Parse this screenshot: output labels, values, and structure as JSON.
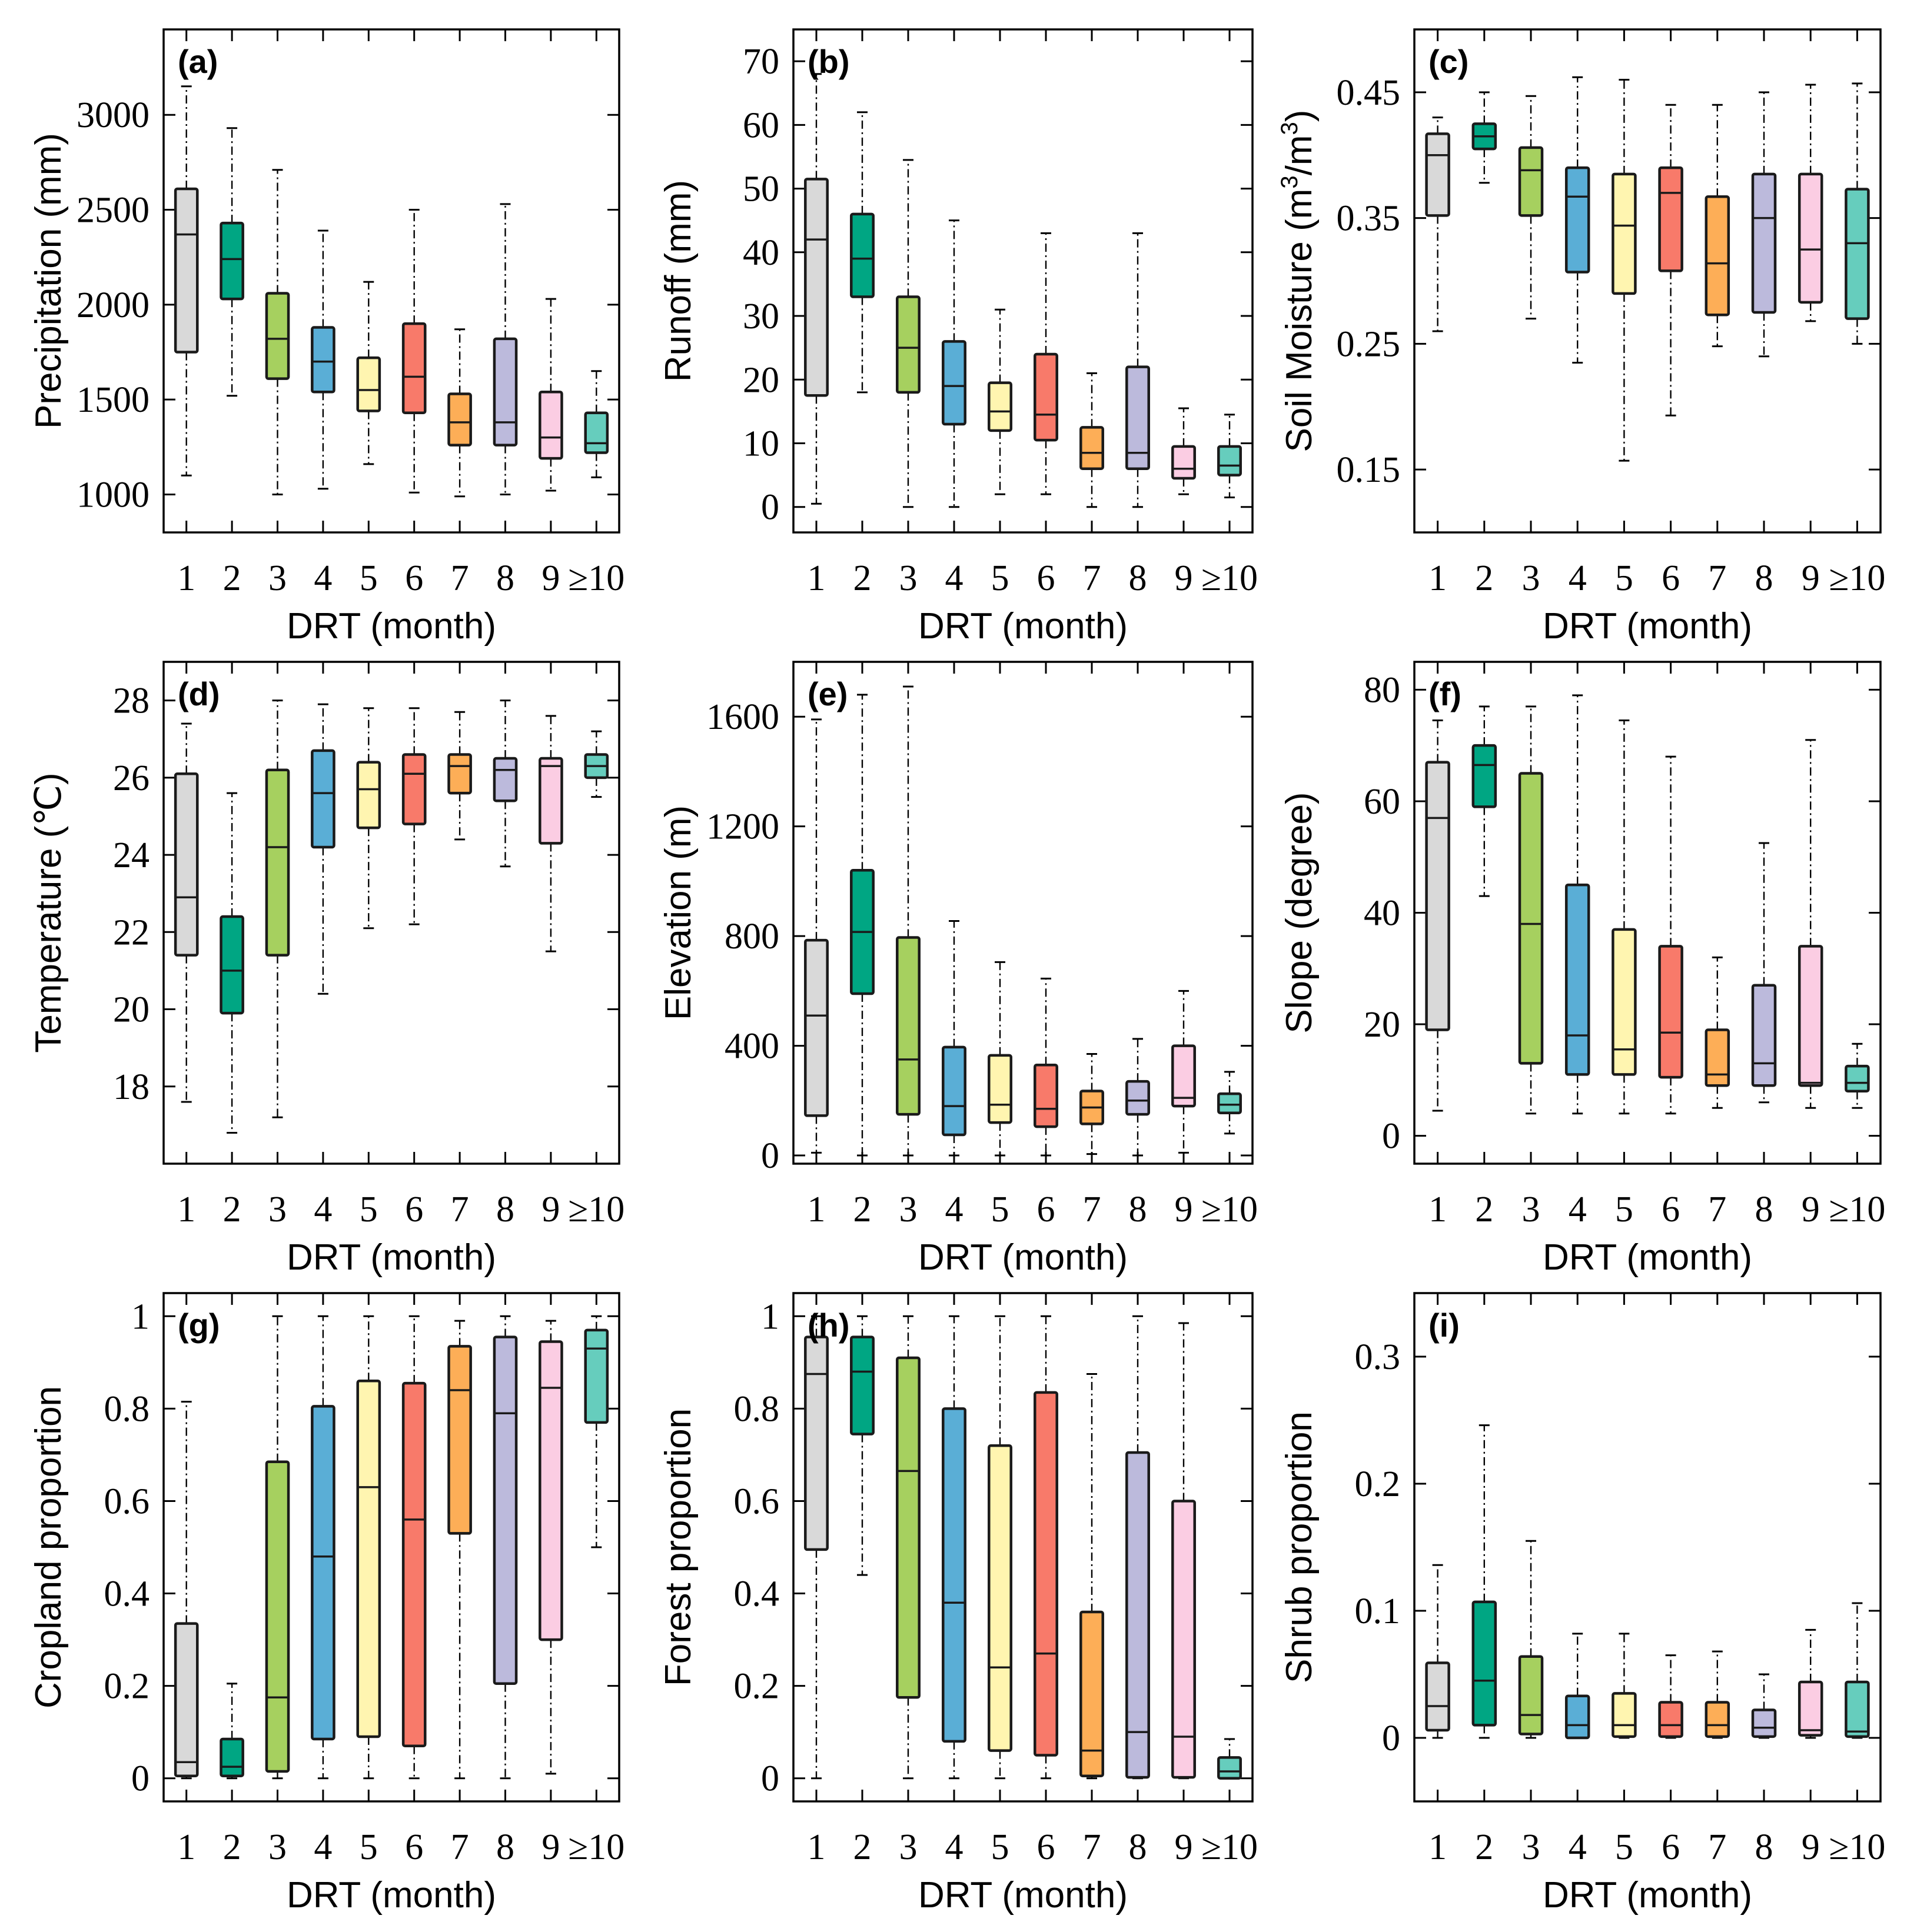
{
  "figure": {
    "colors": [
      "#d9d9d9",
      "#00a683",
      "#a6d05f",
      "#5aaed6",
      "#fff5b0",
      "#f87a6a",
      "#fdae57",
      "#bcbadc",
      "#fbcde3",
      "#66cdbd"
    ]
  },
  "chart_data": [
    {
      "type": "box",
      "panel_label": "(a)",
      "ylabel": "Precipitation (mm)",
      "xlabel": "DRT (month)",
      "categories": [
        "1",
        "2",
        "3",
        "4",
        "5",
        "6",
        "7",
        "8",
        "9",
        "≥10"
      ],
      "ylim": [
        800,
        3450
      ],
      "yticks": [
        1000,
        1500,
        2000,
        2500,
        3000
      ],
      "ytick_labels": [
        "1000",
        "1500",
        "2000",
        "2500",
        "3000"
      ],
      "whisker_low": [
        1100,
        1520,
        1000,
        1030,
        1160,
        1010,
        990,
        1000,
        1020,
        1090
      ],
      "q1": [
        1750,
        2030,
        1610,
        1540,
        1440,
        1430,
        1260,
        1260,
        1190,
        1220
      ],
      "median": [
        2370,
        2240,
        1820,
        1700,
        1550,
        1620,
        1380,
        1380,
        1300,
        1270
      ],
      "q3": [
        2610,
        2430,
        2060,
        1880,
        1720,
        1900,
        1530,
        1820,
        1540,
        1430
      ],
      "whisker_high": [
        3150,
        2930,
        2710,
        2390,
        2120,
        2500,
        1870,
        2530,
        2030,
        1650
      ]
    },
    {
      "type": "box",
      "panel_label": "(b)",
      "ylabel": "Runoff (mm)",
      "xlabel": "DRT (month)",
      "categories": [
        "1",
        "2",
        "3",
        "4",
        "5",
        "6",
        "7",
        "8",
        "9",
        "≥10"
      ],
      "ylim": [
        -4,
        75
      ],
      "yticks": [
        0,
        10,
        20,
        30,
        40,
        50,
        60,
        70
      ],
      "ytick_labels": [
        "0",
        "10",
        "20",
        "30",
        "40",
        "50",
        "60",
        "70"
      ],
      "whisker_low": [
        0.5,
        18,
        0,
        0,
        2,
        2,
        0,
        0,
        2,
        1.5
      ],
      "q1": [
        17.5,
        33,
        18,
        13,
        12,
        10.5,
        6,
        6,
        4.5,
        5
      ],
      "median": [
        42,
        39,
        25,
        19,
        15,
        14.5,
        8.5,
        8.5,
        6,
        6.5
      ],
      "q3": [
        51.5,
        46,
        33,
        26,
        19.5,
        24,
        12.5,
        22,
        9.5,
        9.5
      ],
      "whisker_high": [
        68,
        62,
        54.5,
        45,
        31,
        43,
        21,
        43,
        15.5,
        14.5
      ]
    },
    {
      "type": "box",
      "panel_label": "(c)",
      "ylabel": "Soil Moisture (m3/m3)",
      "ylabel_parts": [
        "Soil Moisture (m",
        "3",
        "/m",
        "3",
        ")"
      ],
      "xlabel": "DRT (month)",
      "categories": [
        "1",
        "2",
        "3",
        "4",
        "5",
        "6",
        "7",
        "8",
        "9",
        "≥10"
      ],
      "ylim": [
        0.1,
        0.5
      ],
      "yticks": [
        0.15,
        0.25,
        0.35,
        0.45
      ],
      "ytick_labels": [
        "0.15",
        "0.25",
        "0.35",
        "0.45"
      ],
      "whisker_low": [
        0.26,
        0.378,
        0.27,
        0.235,
        0.157,
        0.193,
        0.248,
        0.24,
        0.268,
        0.25
      ],
      "q1": [
        0.352,
        0.405,
        0.352,
        0.307,
        0.29,
        0.308,
        0.273,
        0.275,
        0.283,
        0.27
      ],
      "median": [
        0.4,
        0.415,
        0.388,
        0.367,
        0.344,
        0.37,
        0.314,
        0.35,
        0.325,
        0.33
      ],
      "q3": [
        0.417,
        0.425,
        0.406,
        0.39,
        0.385,
        0.39,
        0.367,
        0.385,
        0.385,
        0.373
      ],
      "whisker_high": [
        0.43,
        0.45,
        0.447,
        0.462,
        0.46,
        0.44,
        0.44,
        0.45,
        0.456,
        0.457
      ]
    },
    {
      "type": "box",
      "panel_label": "(d)",
      "ylabel": "Temperature (℃)",
      "xlabel": "DRT (month)",
      "categories": [
        "1",
        "2",
        "3",
        "4",
        "5",
        "6",
        "7",
        "8",
        "9",
        "≥10"
      ],
      "ylim": [
        16,
        29
      ],
      "yticks": [
        18,
        20,
        22,
        24,
        26,
        28
      ],
      "ytick_labels": [
        "18",
        "20",
        "22",
        "24",
        "26",
        "28"
      ],
      "whisker_low": [
        17.6,
        16.8,
        17.2,
        20.4,
        22.1,
        22.2,
        24.4,
        23.7,
        21.5,
        25.5
      ],
      "q1": [
        21.4,
        19.9,
        21.4,
        24.2,
        24.7,
        24.8,
        25.6,
        25.4,
        24.3,
        26.0
      ],
      "median": [
        22.9,
        21.0,
        24.2,
        25.6,
        25.7,
        26.1,
        26.3,
        26.2,
        26.3,
        26.3
      ],
      "q3": [
        26.1,
        22.4,
        26.2,
        26.7,
        26.4,
        26.6,
        26.6,
        26.5,
        26.5,
        26.6
      ],
      "whisker_high": [
        27.4,
        25.6,
        28.0,
        27.9,
        27.8,
        27.8,
        27.7,
        28.0,
        27.6,
        27.2
      ]
    },
    {
      "type": "box",
      "panel_label": "(e)",
      "ylabel": "Elevation (m)",
      "xlabel": "DRT (month)",
      "categories": [
        "1",
        "2",
        "3",
        "4",
        "5",
        "6",
        "7",
        "8",
        "9",
        "≥10"
      ],
      "ylim": [
        -30,
        1800
      ],
      "yticks": [
        0,
        400,
        800,
        1200,
        1600
      ],
      "ytick_labels": [
        "0",
        "400",
        "800",
        "1200",
        "1600"
      ],
      "whisker_low": [
        10,
        0,
        0,
        0,
        0,
        0,
        5,
        0,
        10,
        80
      ],
      "q1": [
        145,
        590,
        150,
        75,
        120,
        105,
        115,
        150,
        180,
        155
      ],
      "median": [
        510,
        815,
        350,
        180,
        185,
        170,
        175,
        200,
        210,
        185
      ],
      "q3": [
        785,
        1040,
        795,
        395,
        365,
        330,
        235,
        270,
        400,
        225
      ],
      "whisker_high": [
        1590,
        1680,
        1710,
        855,
        705,
        645,
        370,
        425,
        600,
        305
      ]
    },
    {
      "type": "box",
      "panel_label": "(f)",
      "ylabel": "Slope (degree)",
      "xlabel": "DRT (month)",
      "categories": [
        "1",
        "2",
        "3",
        "4",
        "5",
        "6",
        "7",
        "8",
        "9",
        "≥10"
      ],
      "ylim": [
        -5,
        85
      ],
      "yticks": [
        0,
        20,
        40,
        60,
        80
      ],
      "ytick_labels": [
        "0",
        "20",
        "40",
        "60",
        "80"
      ],
      "whisker_low": [
        4.5,
        43,
        4,
        4,
        4,
        4,
        5,
        6,
        5,
        5
      ],
      "q1": [
        19,
        59,
        13,
        11,
        11,
        10.5,
        9,
        9,
        9,
        8
      ],
      "median": [
        57,
        66.5,
        38,
        18,
        15.5,
        18.5,
        11,
        13,
        9.5,
        9.5
      ],
      "q3": [
        67,
        70,
        65,
        45,
        37,
        34,
        19,
        27,
        34,
        12.5
      ],
      "whisker_high": [
        74.5,
        77,
        77,
        79,
        74.5,
        68,
        32,
        52.5,
        71,
        16.5
      ]
    },
    {
      "type": "box",
      "panel_label": "(g)",
      "ylabel": "Cropland proportion",
      "xlabel": "DRT (month)",
      "categories": [
        "1",
        "2",
        "3",
        "4",
        "5",
        "6",
        "7",
        "8",
        "9",
        "≥10"
      ],
      "ylim": [
        -0.05,
        1.05
      ],
      "yticks": [
        0,
        0.2,
        0.4,
        0.6,
        0.8,
        1
      ],
      "ytick_labels": [
        "0",
        "0.2",
        "0.4",
        "0.6",
        "0.8",
        "1"
      ],
      "whisker_low": [
        0,
        0,
        0,
        0,
        0,
        0,
        0,
        0,
        0.01,
        0.5
      ],
      "q1": [
        0.005,
        0.005,
        0.015,
        0.085,
        0.09,
        0.07,
        0.53,
        0.205,
        0.3,
        0.77
      ],
      "median": [
        0.035,
        0.025,
        0.175,
        0.48,
        0.63,
        0.56,
        0.84,
        0.79,
        0.845,
        0.93
      ],
      "q3": [
        0.335,
        0.085,
        0.685,
        0.805,
        0.86,
        0.855,
        0.935,
        0.955,
        0.945,
        0.97
      ],
      "whisker_high": [
        0.815,
        0.205,
        1,
        1,
        1,
        1,
        0.99,
        1,
        0.99,
        1
      ]
    },
    {
      "type": "box",
      "panel_label": "(h)",
      "ylabel": "Forest proportion",
      "xlabel": "DRT (month)",
      "categories": [
        "1",
        "2",
        "3",
        "4",
        "5",
        "6",
        "7",
        "8",
        "9",
        "≥10"
      ],
      "ylim": [
        -0.05,
        1.05
      ],
      "yticks": [
        0,
        0.2,
        0.4,
        0.6,
        0.8,
        1
      ],
      "ytick_labels": [
        "0",
        "0.2",
        "0.4",
        "0.6",
        "0.8",
        "1"
      ],
      "whisker_low": [
        0,
        0.44,
        0,
        0,
        0,
        0,
        0,
        0,
        0,
        0
      ],
      "q1": [
        0.495,
        0.745,
        0.175,
        0.08,
        0.06,
        0.05,
        0.005,
        0.002,
        0.002,
        0
      ],
      "median": [
        0.875,
        0.88,
        0.665,
        0.38,
        0.24,
        0.27,
        0.06,
        0.1,
        0.09,
        0.015
      ],
      "q3": [
        0.955,
        0.955,
        0.91,
        0.8,
        0.72,
        0.835,
        0.36,
        0.705,
        0.6,
        0.045
      ],
      "whisker_high": [
        1,
        1,
        1,
        1,
        1,
        1,
        0.875,
        1,
        0.985,
        0.085
      ]
    },
    {
      "type": "box",
      "panel_label": "(i)",
      "ylabel": "Shrub proportion",
      "xlabel": "DRT (month)",
      "categories": [
        "1",
        "2",
        "3",
        "4",
        "5",
        "6",
        "7",
        "8",
        "9",
        "≥10"
      ],
      "ylim": [
        -0.05,
        0.35
      ],
      "yticks": [
        0,
        0.1,
        0.2,
        0.3
      ],
      "ytick_labels": [
        "0",
        "0.1",
        "0.2",
        "0.3"
      ],
      "whisker_low": [
        0,
        0,
        0,
        0,
        0,
        0,
        0,
        0,
        0,
        0
      ],
      "q1": [
        0.006,
        0.01,
        0.003,
        0,
        0.001,
        0.001,
        0.001,
        0.001,
        0.002,
        0.001
      ],
      "median": [
        0.025,
        0.045,
        0.018,
        0.01,
        0.01,
        0.01,
        0.01,
        0.008,
        0.006,
        0.005
      ],
      "q3": [
        0.059,
        0.107,
        0.064,
        0.033,
        0.035,
        0.028,
        0.028,
        0.022,
        0.044,
        0.044
      ],
      "whisker_high": [
        0.136,
        0.246,
        0.155,
        0.082,
        0.082,
        0.065,
        0.068,
        0.05,
        0.085,
        0.106
      ]
    }
  ]
}
